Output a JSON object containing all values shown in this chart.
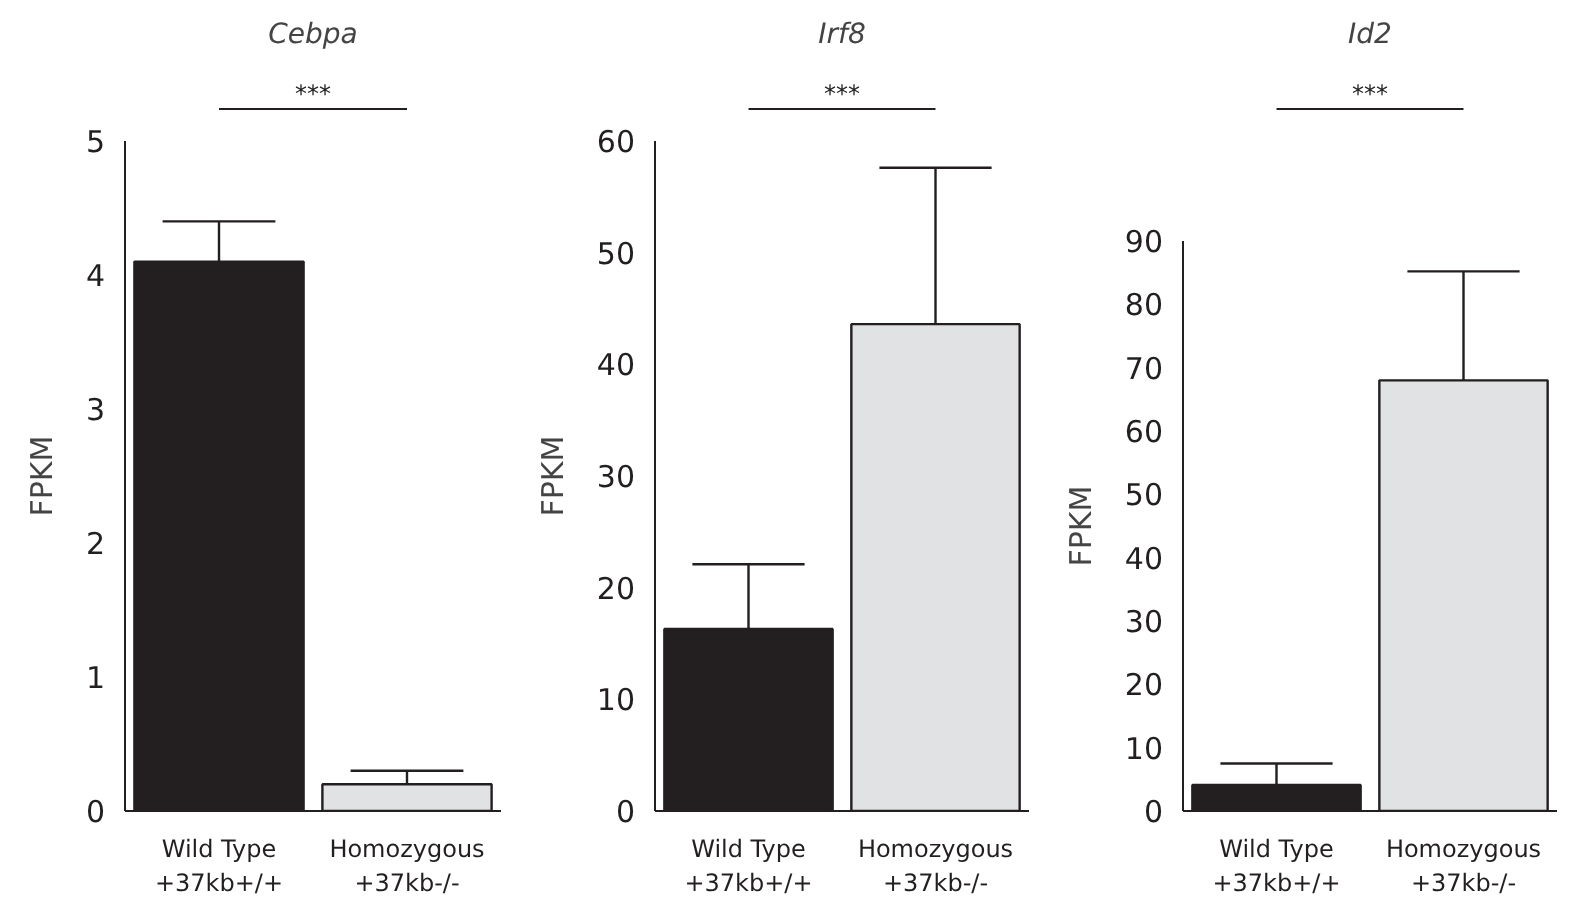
{
  "chart_data": [
    {
      "type": "bar",
      "title": "Cebpa",
      "ylabel": "FPKM",
      "categories": [
        "Wild Type\n+37kb+/+",
        "Homozygous\n+37kb-/-"
      ],
      "values": [
        4.1,
        0.2
      ],
      "colors": [
        "#231f20",
        "#e1e2e3"
      ],
      "errors": [
        [
          4.1,
          4.4
        ],
        [
          0.2,
          0.3
        ]
      ],
      "ylim": [
        0,
        5
      ],
      "yticks": [
        0,
        1,
        2,
        3,
        4,
        5
      ],
      "annotations": [
        "***"
      ]
    },
    {
      "type": "bar",
      "title": "Irf8",
      "ylabel": "FPKM",
      "categories": [
        "Wild Type\n+37kb+/+",
        "Homozygous\n+37kb-/-"
      ],
      "values": [
        16.3,
        43.6
      ],
      "colors": [
        "#231f20",
        "#e1e2e3"
      ],
      "errors": [
        [
          16.3,
          22.1
        ],
        [
          43.6,
          57.6
        ]
      ],
      "ylim": [
        0,
        60
      ],
      "yticks": [
        0,
        10,
        20,
        30,
        40,
        50,
        60
      ],
      "annotations": [
        "***"
      ]
    },
    {
      "type": "bar",
      "title": "Id2",
      "ylabel": "FPKM",
      "categories": [
        "Wild Type\n+37kb+/+",
        "Homozygous\n+37kb-/-"
      ],
      "values": [
        4.1,
        68
      ],
      "colors": [
        "#231f20",
        "#e1e2e3"
      ],
      "errors": [
        [
          4.1,
          7.5
        ],
        [
          68,
          85.2
        ]
      ],
      "ylim": [
        0,
        90
      ],
      "yticks": [
        0,
        10,
        20,
        30,
        40,
        50,
        60,
        70,
        80,
        90
      ],
      "annotations": [
        "***"
      ]
    }
  ]
}
